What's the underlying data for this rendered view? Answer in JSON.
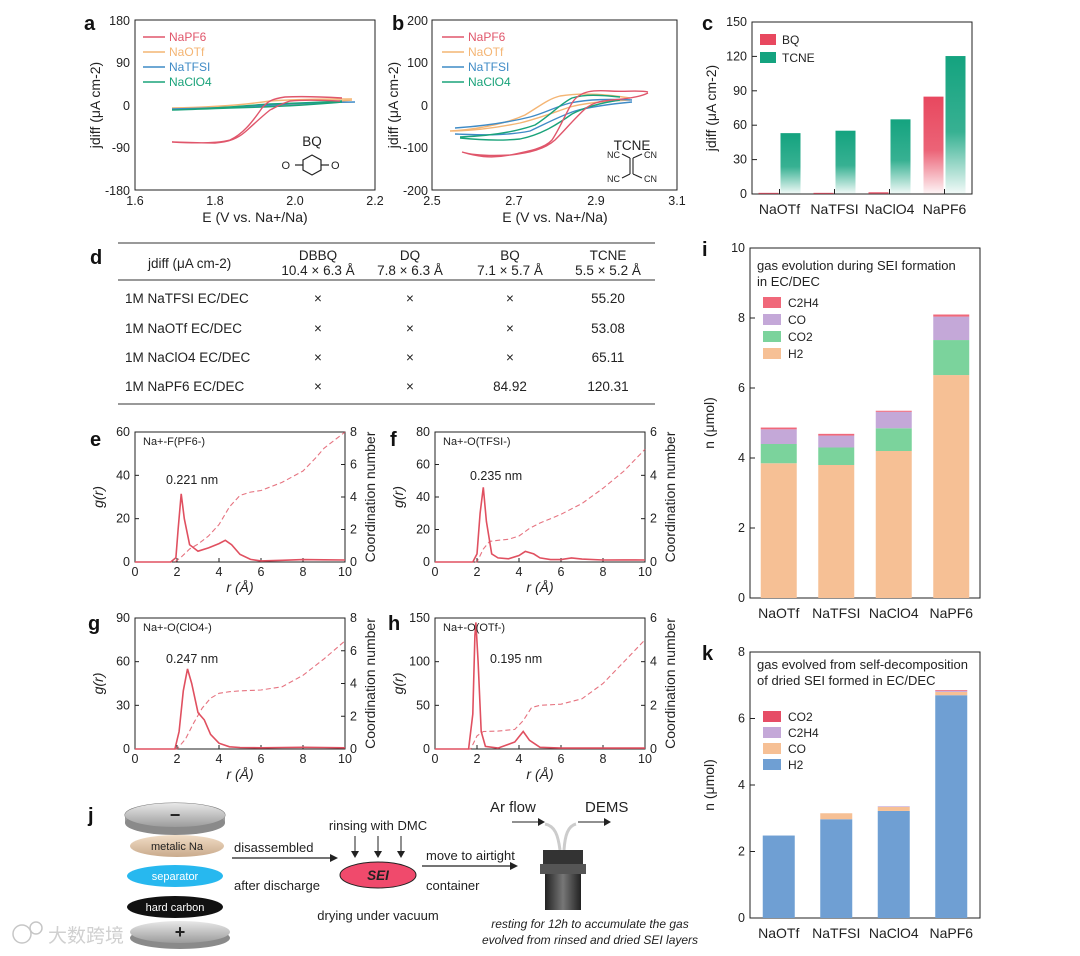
{
  "panel_letters": {
    "a": "a",
    "b": "b",
    "c": "c",
    "d": "d",
    "e": "e",
    "f": "f",
    "g": "g",
    "h": "h",
    "i": "i",
    "j": "j",
    "k": "k"
  },
  "colors": {
    "NaPF6": "#e0566b",
    "NaOTf": "#f4b574",
    "NaTFSI": "#3f8bc6",
    "NaClO4": "#1aa37a",
    "BQ": "#e8485f",
    "TCNE": "#14a37f",
    "H2": "#f6c095",
    "CO2": "#7bd39c",
    "CO": "#c4a8d8",
    "C2H4": "#f0687a",
    "H2k": "#6f9fd3",
    "COk": "#f6c095",
    "C2H4k": "#c4a8d8",
    "CO2k": "#e64d66",
    "rdf": "#e05060"
  },
  "panel_a": {
    "legend": [
      "NaPF6",
      "NaOTf",
      "NaTFSI",
      "NaClO4"
    ],
    "xlabel": "E (V vs. Na+/Na)",
    "ylabel": "jdiff (μA cm-2)",
    "molecule": "BQ",
    "xticks": [
      "1.6",
      "1.8",
      "2.0",
      "2.2"
    ],
    "yticks": [
      "180",
      "90",
      "0",
      "-90",
      "-180"
    ]
  },
  "panel_b": {
    "legend": [
      "NaPF6",
      "NaOTf",
      "NaTFSI",
      "NaClO4"
    ],
    "xlabel": "E (V vs. Na+/Na)",
    "ylabel": "jdiff (μA cm-2)",
    "molecule": "TCNE",
    "cn": [
      "NC",
      "CN",
      "NC",
      "CN"
    ],
    "xticks": [
      "2.5",
      "2.7",
      "2.9",
      "3.1"
    ],
    "yticks": [
      "200",
      "100",
      "0",
      "-100",
      "-200"
    ]
  },
  "panel_d": {
    "header": [
      "jdiff (μA cm-2)",
      "DBBQ",
      "DQ",
      "BQ",
      "TCNE"
    ],
    "sizes": [
      "10.4 × 6.3 Å",
      "7.8 × 6.3 Å",
      "7.1 × 5.7 Å",
      "5.5 × 5.2 Å"
    ],
    "rows": [
      {
        "label": "1M NaTFSI EC/DEC",
        "cells": [
          "×",
          "×",
          "×",
          "55.20"
        ]
      },
      {
        "label": "1M NaOTf EC/DEC",
        "cells": [
          "×",
          "×",
          "×",
          "53.08"
        ]
      },
      {
        "label": "1M NaClO4 EC/DEC",
        "cells": [
          "×",
          "×",
          "×",
          "65.11"
        ]
      },
      {
        "label": "1M NaPF6 EC/DEC",
        "cells": [
          "×",
          "×",
          "84.92",
          "120.31"
        ]
      }
    ]
  },
  "panel_j": {
    "metallic": "metalic Na",
    "separator": "separator",
    "hard_carbon": "hard carbon",
    "minus": "−",
    "plus": "+",
    "disassembled": "disassembled",
    "after_discharge": "after discharge",
    "rinsing": "rinsing with DMC",
    "sei": "SEI",
    "drying": "drying under vacuum",
    "move": "move to airtight",
    "container": "container",
    "ar_flow": "Ar flow",
    "dems": "DEMS",
    "resting1": "resting for 12h to accumulate the gas",
    "resting2": "evolved from rinsed and dried SEI layers"
  },
  "watermark": "大数跨境",
  "chart_data": [
    {
      "id": "c",
      "type": "bar",
      "categories": [
        "NaOTf",
        "NaTFSI",
        "NaClO4",
        "NaPF6"
      ],
      "series": [
        {
          "name": "BQ",
          "values": [
            1,
            1,
            1.5,
            84.92
          ]
        },
        {
          "name": "TCNE",
          "values": [
            53.08,
            55.2,
            65.11,
            120.31
          ]
        }
      ],
      "ylabel": "jdiff (μA cm-2)",
      "ylim": [
        0,
        150
      ],
      "yticks": [
        "0",
        "30",
        "60",
        "90",
        "120",
        "150"
      ],
      "legend_position": "top-left"
    },
    {
      "id": "i",
      "type": "bar",
      "title": "gas evolution during SEI formation in EC/DEC",
      "title_lines": [
        "gas evolution during SEI formation",
        "in EC/DEC"
      ],
      "categories": [
        "NaOTf",
        "NaTFSI",
        "NaClO4",
        "NaPF6"
      ],
      "stacked": true,
      "series": [
        {
          "name": "H2",
          "values": [
            3.85,
            3.8,
            4.2,
            6.37
          ]
        },
        {
          "name": "CO2",
          "values": [
            0.55,
            0.5,
            0.65,
            1.0
          ]
        },
        {
          "name": "CO",
          "values": [
            0.42,
            0.34,
            0.47,
            0.67
          ]
        },
        {
          "name": "C2H4",
          "values": [
            0.05,
            0.05,
            0.03,
            0.06
          ]
        }
      ],
      "legend": [
        "C2H4",
        "CO",
        "CO2",
        "H2"
      ],
      "ylabel": "n (μmol)",
      "ylim": [
        0,
        10
      ],
      "yticks": [
        "0",
        "2",
        "4",
        "6",
        "8",
        "10"
      ],
      "legend_position": "top-left"
    },
    {
      "id": "k",
      "type": "bar",
      "title": "gas evolved from self-decomposition of dried SEI formed in EC/DEC",
      "title_lines": [
        "gas evolved from self-decomposition",
        "of dried SEI formed in EC/DEC"
      ],
      "categories": [
        "NaOTf",
        "NaTFSI",
        "NaClO4",
        "NaPF6"
      ],
      "stacked": true,
      "series": [
        {
          "name": "H2",
          "values": [
            2.48,
            2.97,
            3.22,
            6.7
          ]
        },
        {
          "name": "CO",
          "values": [
            0.0,
            0.18,
            0.12,
            0.1
          ]
        },
        {
          "name": "C2H4",
          "values": [
            0.0,
            0.0,
            0.02,
            0.03
          ]
        },
        {
          "name": "CO2",
          "values": [
            0.0,
            0.0,
            0.0,
            0.02
          ]
        }
      ],
      "legend": [
        "CO2",
        "C2H4",
        "CO",
        "H2"
      ],
      "ylabel": "n (μmol)",
      "ylim": [
        0,
        8
      ],
      "yticks": [
        "0",
        "2",
        "4",
        "6",
        "8"
      ],
      "legend_position": "top-left"
    },
    {
      "id": "e",
      "type": "line",
      "label": "Na+-F(PF6-)",
      "peak_label": "0.221 nm",
      "xlabel": "r (Å)",
      "ylabel": "g(r)",
      "y2label": "Coordination number",
      "xlim": [
        0,
        10
      ],
      "ylim": [
        0,
        60
      ],
      "y2lim": [
        0,
        8
      ],
      "xticks": [
        "0",
        "2",
        "4",
        "6",
        "8",
        "10"
      ],
      "yticks": [
        "0",
        "20",
        "40",
        "60"
      ],
      "y2ticks": [
        "0",
        "2",
        "4",
        "6",
        "8"
      ],
      "series": [
        {
          "name": "g(r)",
          "x": [
            0,
            1.7,
            1.95,
            2.05,
            2.2,
            2.35,
            2.6,
            3.0,
            3.5,
            4.0,
            4.3,
            4.6,
            5.0,
            5.5,
            6,
            7,
            8,
            9,
            10
          ],
          "y": [
            0,
            0,
            2,
            15,
            31.5,
            20,
            8,
            5,
            6.5,
            8.5,
            10,
            8,
            3.5,
            1.2,
            0.5,
            0.8,
            1.1,
            1.0,
            0.9
          ]
        },
        {
          "name": "CN",
          "x": [
            0,
            1.9,
            2.2,
            2.6,
            3.0,
            3.5,
            4.0,
            4.5,
            5.0,
            5.5,
            6,
            7,
            8,
            8.6,
            9,
            10
          ],
          "y": [
            0,
            0,
            0.3,
            0.8,
            1.1,
            1.6,
            2.3,
            3.4,
            4.1,
            4.3,
            4.4,
            4.9,
            5.6,
            6.4,
            7.0,
            8.0
          ]
        }
      ]
    },
    {
      "id": "f",
      "type": "line",
      "label": "Na+-O(TFSI-)",
      "peak_label": "0.235 nm",
      "xlabel": "r (Å)",
      "ylabel": "g(r)",
      "y2label": "Coordination number",
      "xlim": [
        0,
        10
      ],
      "ylim": [
        0,
        80
      ],
      "y2lim": [
        0,
        6
      ],
      "xticks": [
        "0",
        "2",
        "4",
        "6",
        "8",
        "10"
      ],
      "yticks": [
        "0",
        "20",
        "40",
        "60",
        "80"
      ],
      "y2ticks": [
        "0",
        "2",
        "4",
        "6"
      ],
      "series": [
        {
          "name": "g(r)",
          "x": [
            0,
            1.8,
            2.0,
            2.15,
            2.3,
            2.45,
            2.7,
            3.0,
            3.5,
            4.0,
            4.3,
            4.7,
            5.0,
            5.5,
            6,
            6.5,
            7,
            8,
            9,
            10
          ],
          "y": [
            0,
            0,
            5,
            30,
            46,
            25,
            5,
            2.5,
            2,
            4,
            6.5,
            5,
            2.5,
            1.5,
            1.5,
            2.5,
            1.8,
            1.2,
            1.3,
            1.2
          ]
        },
        {
          "name": "CN",
          "x": [
            0,
            2.0,
            2.3,
            2.6,
            3.0,
            3.5,
            4.0,
            4.5,
            5.0,
            5.5,
            6,
            7,
            8,
            9,
            10
          ],
          "y": [
            0,
            0,
            0.6,
            0.95,
            1.0,
            1.05,
            1.2,
            1.55,
            1.8,
            2.0,
            2.2,
            2.7,
            3.4,
            4.2,
            5.2
          ]
        }
      ]
    },
    {
      "id": "g",
      "type": "line",
      "label": "Na+-O(ClO4-)",
      "peak_label": "0.247 nm",
      "xlabel": "r (Å)",
      "ylabel": "g(r)",
      "y2label": "Coordination number",
      "xlim": [
        0,
        10
      ],
      "ylim": [
        0,
        90
      ],
      "y2lim": [
        0,
        8
      ],
      "xticks": [
        "0",
        "2",
        "4",
        "6",
        "8",
        "10"
      ],
      "yticks": [
        "0",
        "30",
        "60",
        "90"
      ],
      "y2ticks": [
        "0",
        "2",
        "4",
        "6",
        "8"
      ],
      "series": [
        {
          "name": "g(r)",
          "x": [
            0,
            1.9,
            2.1,
            2.3,
            2.5,
            2.7,
            3.0,
            3.3,
            3.6,
            4.0,
            4.5,
            5.0,
            6,
            7,
            8,
            9,
            10
          ],
          "y": [
            0,
            0,
            12,
            40,
            55,
            45,
            25,
            20,
            10,
            4,
            1.5,
            1.0,
            0.8,
            1.0,
            1.2,
            1.0,
            0.8
          ]
        },
        {
          "name": "CN",
          "x": [
            0,
            2.0,
            2.4,
            2.8,
            3.2,
            3.6,
            4.0,
            4.5,
            5.0,
            6,
            7,
            8,
            9,
            10
          ],
          "y": [
            0,
            0,
            0.6,
            1.6,
            2.5,
            3.1,
            3.4,
            3.5,
            3.55,
            3.6,
            3.8,
            4.5,
            5.5,
            6.6
          ]
        }
      ]
    },
    {
      "id": "h",
      "type": "line",
      "label": "Na+-O(OTf-)",
      "peak_label": "0.195 nm",
      "xlabel": "r (Å)",
      "ylabel": "g(r)",
      "y2label": "Coordination number",
      "xlim": [
        0,
        10
      ],
      "ylim": [
        0,
        150
      ],
      "y2lim": [
        0,
        6
      ],
      "xticks": [
        "0",
        "2",
        "4",
        "6",
        "8",
        "10"
      ],
      "yticks": [
        "0",
        "50",
        "100",
        "150"
      ],
      "y2ticks": [
        "0",
        "2",
        "4",
        "6"
      ],
      "series": [
        {
          "name": "g(r)",
          "x": [
            0,
            1.6,
            1.8,
            1.9,
            1.95,
            2.05,
            2.2,
            2.4,
            3.0,
            3.8,
            4.2,
            4.5,
            5.0,
            6,
            7,
            8,
            9,
            10
          ],
          "y": [
            0,
            0,
            40,
            130,
            145,
            100,
            20,
            3,
            1,
            8,
            20,
            10,
            2,
            1,
            1,
            1,
            1,
            1
          ]
        },
        {
          "name": "CN",
          "x": [
            0,
            1.7,
            2.0,
            2.3,
            3.0,
            3.8,
            4.2,
            4.6,
            5.0,
            6,
            7,
            8,
            9,
            10
          ],
          "y": [
            0,
            0,
            0.6,
            0.8,
            0.82,
            0.9,
            1.3,
            1.9,
            2.0,
            2.05,
            2.3,
            3.0,
            4.0,
            5.0
          ]
        }
      ]
    }
  ]
}
